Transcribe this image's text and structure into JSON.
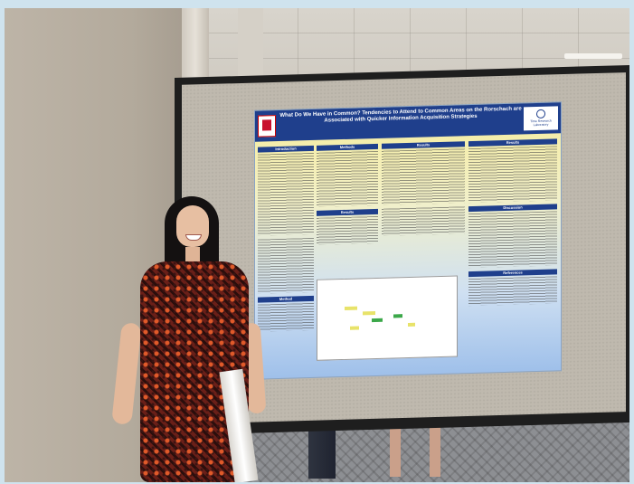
{
  "poster": {
    "title": "What Do We Have in Common? Tendencies to Attend to Common Areas on the Rorschach are Associated with Quicker Information Acquisition Strategies",
    "logo_right_text": "Time Research Laboratory",
    "sections": {
      "introduction": "Introduction",
      "methods": "Methods",
      "results": "Results",
      "results_2": "Results",
      "results_col2": "Results",
      "discussion": "Discussion",
      "references": "References",
      "method_2": "Method"
    }
  },
  "colors": {
    "poster_header": "#1f3f8c",
    "dress_base": "#6a1f18",
    "dress_accent": "#e05a2a",
    "board_frame": "#1e1e1e"
  }
}
